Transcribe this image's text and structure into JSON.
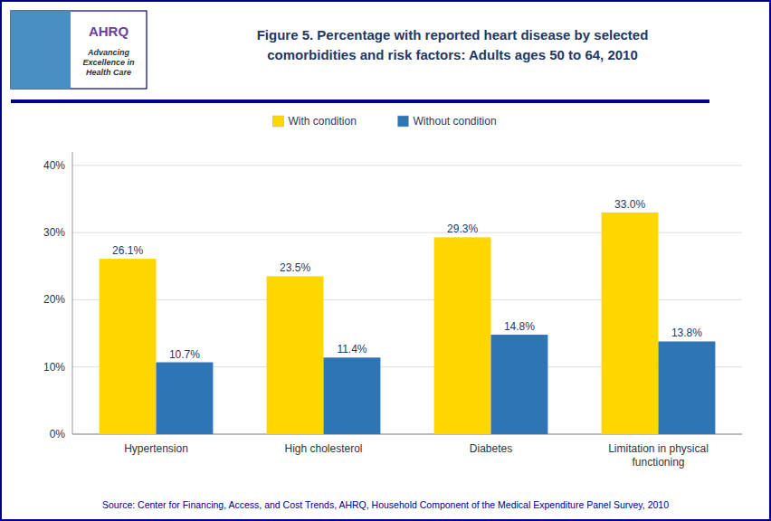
{
  "chart_data": {
    "type": "bar",
    "title": "Figure 5. Percentage with  reported heart disease by selected\ncomorbidities  and risk factors: Adults ages 50 to 64, 2010",
    "annotations": [
      "AHRQ",
      "Advancing",
      "Excellence in",
      "Health Care",
      "Source: Center for Financing, Access, and Cost Trends, AHRQ,  Household Component of the Medical Expenditure Panel Survey,  2010"
    ],
    "categories": [
      "Hypertension",
      "High cholesterol",
      "Diabetes",
      "Limitation in physical\nfunctioning"
    ],
    "series": [
      {
        "name": "With condition",
        "color": "#FFD700",
        "values": [
          26.1,
          23.5,
          29.3,
          33.0
        ],
        "value_labels": [
          "26.1%",
          "23.5%",
          "29.3%",
          "33.0%"
        ]
      },
      {
        "name": "Without condition",
        "color": "#2E75B6",
        "values": [
          10.7,
          11.4,
          14.8,
          13.8
        ],
        "value_labels": [
          "10.7%",
          "11.4%",
          "14.8%",
          "13.8%"
        ]
      }
    ],
    "ylim": [
      0,
      42
    ],
    "yticks": [
      {
        "value": 0,
        "label": "0%"
      },
      {
        "value": 10,
        "label": "10%"
      },
      {
        "value": 20,
        "label": "20%"
      },
      {
        "value": 30,
        "label": "30%"
      },
      {
        "value": 40,
        "label": "40%"
      }
    ],
    "grid": true,
    "legend": "top",
    "data_labels": true
  }
}
